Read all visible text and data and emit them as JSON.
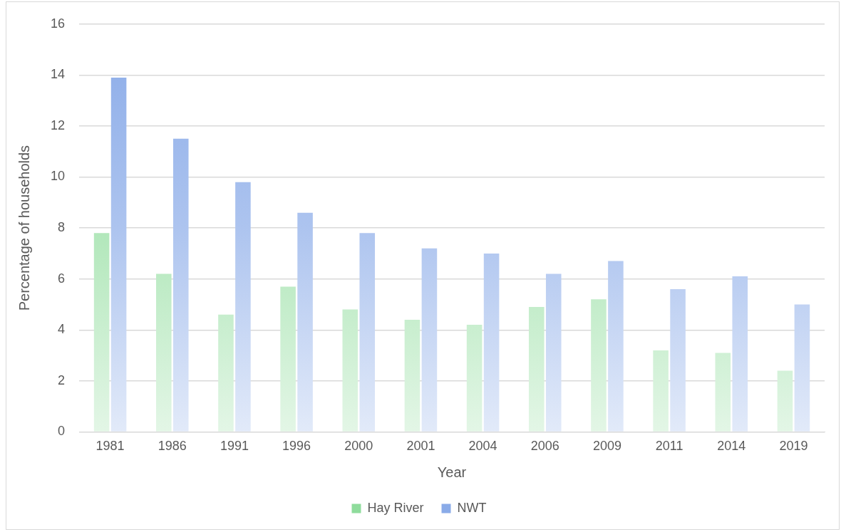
{
  "chart_data": {
    "type": "bar",
    "xlabel": "Year",
    "ylabel": "Percentage of households",
    "categories": [
      "1981",
      "1986",
      "1991",
      "1996",
      "2000",
      "2001",
      "2004",
      "2006",
      "2009",
      "2011",
      "2014",
      "2019"
    ],
    "series": [
      {
        "name": "Hay River",
        "color": "#8fdc9c",
        "values": [
          7.8,
          6.2,
          4.6,
          5.7,
          4.8,
          4.4,
          4.2,
          4.9,
          5.2,
          3.2,
          3.1,
          2.4
        ]
      },
      {
        "name": "NWT",
        "color": "#8aabe8",
        "values": [
          13.9,
          11.5,
          9.8,
          8.6,
          7.8,
          7.2,
          7.0,
          6.2,
          6.7,
          5.6,
          6.1,
          5.0
        ]
      }
    ],
    "ylim": [
      0,
      16
    ],
    "yticks": [
      0,
      2,
      4,
      6,
      8,
      10,
      12,
      14,
      16
    ],
    "grid": "y",
    "legend": "bottom"
  }
}
